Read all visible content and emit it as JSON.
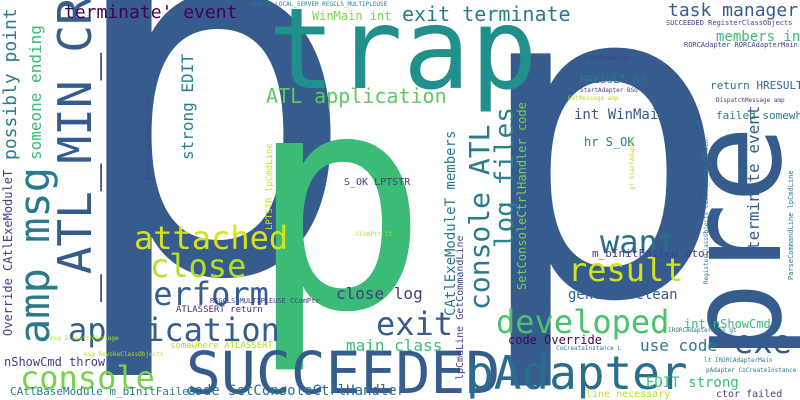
{
  "words": [
    {
      "text": "p",
      "color": "#355c8d"
    },
    {
      "text": "p",
      "color": "#355c8d"
    },
    {
      "text": "p",
      "color": "#3bbb75"
    },
    {
      "text": "trap",
      "color": "#218f8c"
    },
    {
      "text": "pre",
      "color": "#355c8d"
    },
    {
      "text": "SUCCEEDED",
      "color": "#355c8d"
    },
    {
      "text": "_ATL_MIN_CRT",
      "color": "#355c8d"
    },
    {
      "text": "amp msg",
      "color": "#2a7a8e"
    },
    {
      "text": "pAdapter",
      "color": "#2a6e8e"
    },
    {
      "text": "application",
      "color": "#355c8d"
    },
    {
      "text": "console",
      "color": "#7ad151"
    },
    {
      "text": "attached",
      "color": "#d8e219"
    },
    {
      "text": "close",
      "color": "#b5de2b"
    },
    {
      "text": "perform",
      "color": "#355c8d"
    },
    {
      "text": "want",
      "color": "#2a6e8e"
    },
    {
      "text": "result",
      "color": "#d2e21b"
    },
    {
      "text": "developed",
      "color": "#4ac16d"
    },
    {
      "text": "exit",
      "color": "#355c8d"
    },
    {
      "text": "exe",
      "color": "#355c8d"
    },
    {
      "text": "console ATL",
      "color": "#2a7a8e"
    },
    {
      "text": "log files",
      "color": "#26828e"
    },
    {
      "text": "ATL application",
      "color": "#5ec962"
    },
    {
      "text": "exit terminate",
      "color": "#2a7a8e"
    },
    {
      "text": "terminate' event",
      "color": "#440154"
    },
    {
      "text": "task manager",
      "color": "#355c8d"
    },
    {
      "text": "members int",
      "color": "#3bbb75"
    },
    {
      "text": "WinMain int",
      "color": "#7ad151"
    },
    {
      "text": "close log",
      "color": "#433e85"
    },
    {
      "text": "main class",
      "color": "#3bbb75"
    },
    {
      "text": "general clean",
      "color": "#355c8d"
    },
    {
      "text": "use code",
      "color": "#2a7a8e"
    },
    {
      "text": "int nShowCmd",
      "color": "#3bbb75"
    },
    {
      "text": "EDIT strong",
      "color": "#3bbb75"
    },
    {
      "text": "strong EDIT",
      "color": "#26828e"
    },
    {
      "text": "code SetConsoleCtrlHandler",
      "color": "#2a6e8e"
    },
    {
      "text": "code Override",
      "color": "#440154"
    },
    {
      "text": "ATLASSERT return",
      "color": "#482878"
    },
    {
      "text": "somewhere ATLASSERT",
      "color": "#b5de2b"
    },
    {
      "text": "nShowCmd throw",
      "color": "#433e85"
    },
    {
      "text": "CAtlBaseModule m_bInitFailed",
      "color": "#2a7a8e"
    },
    {
      "text": "possibly point",
      "color": "#2a7a8e"
    },
    {
      "text": "someone ending",
      "color": "#3bbb75"
    },
    {
      "text": "Override CAtlExeModuleT",
      "color": "#433e85"
    },
    {
      "text": "terminate event",
      "color": "#355c8d"
    },
    {
      "text": "int WinMain",
      "color": "#355c8d"
    },
    {
      "text": "hr S_OK",
      "color": "#2a7a8e"
    },
    {
      "text": "S_OK LPTSTR",
      "color": "#433e85"
    },
    {
      "text": "LPTSTR lpCmdLine",
      "color": "#d2e21b"
    },
    {
      "text": "SetConsoleCtrlHandler code",
      "color": "#7ad151"
    },
    {
      "text": "CAtlExeModuleT members",
      "color": "#2a7a8e"
    },
    {
      "text": "lpCmdLine GetCommandLine",
      "color": "#433e85"
    },
    {
      "text": "m_bInitFailed ctor",
      "color": "#433e85"
    },
    {
      "text": "HRESULT hr",
      "color": "#2a7a8e"
    },
    {
      "text": "return HRESULT",
      "color": "#2a6e8e"
    },
    {
      "text": "failed somewhere",
      "color": "#2a7a8e"
    },
    {
      "text": "ctor failed",
      "color": "#433e85"
    },
    {
      "text": "line necessary",
      "color": "#b5de2b"
    },
    {
      "text": "SUCCEEDED RegisterClassObjects",
      "color": "#433e85"
    },
    {
      "text": "RORCAdapter RORCAdapterMain",
      "color": "#433e85"
    },
    {
      "text": "L RORCAdapter",
      "color": "#433e85"
    },
    {
      "text": "StartAdapter BSG",
      "color": "#433e85"
    },
    {
      "text": "GetMessage amp",
      "color": "#b5de2b"
    },
    {
      "text": "DispatchMessage amp",
      "color": "#433e85"
    },
    {
      "text": "CLSCTX_LOCAL_SERVER REGCLS_MULTIPLEUSE",
      "color": "#26828e"
    },
    {
      "text": "REGCLS_MULTIPLEUSE CComPtr",
      "color": "#433e85"
    },
    {
      "text": "CComPtr lt",
      "color": "#b5de2b"
    },
    {
      "text": "msg DispatchMessage",
      "color": "#b5de2b"
    },
    {
      "text": "msg RevokeClassObjects",
      "color": "#b5de2b"
    },
    {
      "text": "RevokeClassObjects code",
      "color": "#433e85"
    },
    {
      "text": "CoCreateInstance L",
      "color": "#2a7a8e"
    },
    {
      "text": "lt IRORCAdapterMain",
      "color": "#2a7a8e"
    },
    {
      "text": "pAdapter CoCreateInstance",
      "color": "#2a7a8e"
    },
    {
      "text": "IRORCAdapterMain gt",
      "color": "#2a7a8e"
    },
    {
      "text": "RegisterClassObjects CLSCTX_LOCAL_SERVER",
      "color": "#2a7a8e"
    },
    {
      "text": "ParseCommandLine lpCmdLine",
      "color": "#2a7a8e"
    },
    {
      "text": "gt StartAdapter",
      "color": "#b5de2b"
    }
  ]
}
